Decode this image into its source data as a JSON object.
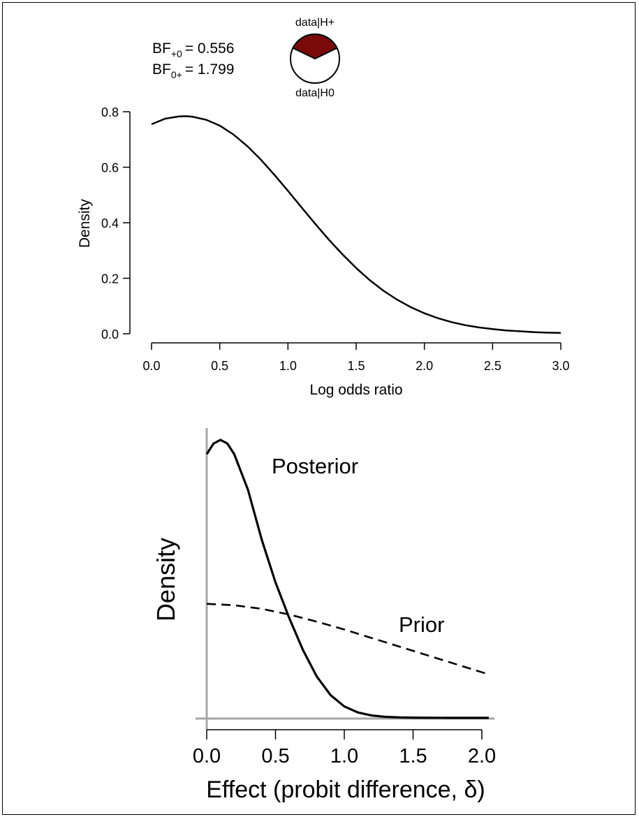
{
  "colors": {
    "pie_h_plus": "#7a0a0a",
    "pie_h0": "#ffffff",
    "axis_gray": "#a6a6a6",
    "line": "#000000"
  },
  "bf": {
    "bf_plus0_prefix": "BF",
    "bf_plus0_sub": "+0",
    "bf_plus0_value": "= 0.556",
    "bf_0plus_prefix": "BF",
    "bf_0plus_sub": "0+",
    "bf_0plus_value": "= 1.799",
    "bf_plus0": 0.556,
    "bf_0plus": 1.799
  },
  "pie": {
    "top_label": "data|H+",
    "bottom_label": "data|H0",
    "h_plus_fraction": 0.357
  },
  "chart_data": [
    {
      "type": "line",
      "xlabel": "Log odds ratio",
      "ylabel": "Density",
      "xlim": [
        0,
        3
      ],
      "ylim": [
        0,
        0.8
      ],
      "xticks": [
        "0.0",
        "0.5",
        "1.0",
        "1.5",
        "2.0",
        "2.5",
        "3.0"
      ],
      "yticks": [
        "0.0",
        "0.2",
        "0.4",
        "0.6",
        "0.8"
      ],
      "series": [
        {
          "x": [
            0.0,
            0.1,
            0.2,
            0.25,
            0.3,
            0.4,
            0.5,
            0.6,
            0.7,
            0.8,
            0.9,
            1.0,
            1.1,
            1.2,
            1.3,
            1.4,
            1.5,
            1.6,
            1.7,
            1.8,
            1.9,
            2.0,
            2.1,
            2.2,
            2.3,
            2.4,
            2.5,
            2.6,
            2.7,
            2.8,
            2.9,
            3.0
          ],
          "y": [
            0.755,
            0.775,
            0.783,
            0.784,
            0.782,
            0.771,
            0.75,
            0.718,
            0.677,
            0.628,
            0.573,
            0.515,
            0.455,
            0.396,
            0.339,
            0.286,
            0.237,
            0.193,
            0.155,
            0.123,
            0.096,
            0.074,
            0.056,
            0.042,
            0.031,
            0.023,
            0.017,
            0.012,
            0.009,
            0.006,
            0.004,
            0.003
          ]
        }
      ]
    },
    {
      "type": "line",
      "xlabel": "Effect (probit difference, δ)",
      "ylabel": "Density",
      "xlim": [
        0,
        2
      ],
      "xticks": [
        "0.0",
        "0.5",
        "1.0",
        "1.5",
        "2.0"
      ],
      "series": [
        {
          "name": "Posterior",
          "style": "solid",
          "x": [
            0.0,
            0.05,
            0.1,
            0.15,
            0.2,
            0.3,
            0.4,
            0.5,
            0.6,
            0.7,
            0.8,
            0.9,
            1.0,
            1.1,
            1.2,
            1.3,
            1.4,
            1.5,
            1.6,
            1.7,
            1.8,
            1.9,
            2.0,
            2.05
          ],
          "y": [
            3.7,
            3.85,
            3.9,
            3.85,
            3.7,
            3.2,
            2.5,
            1.9,
            1.4,
            0.95,
            0.58,
            0.32,
            0.16,
            0.075,
            0.033,
            0.014,
            0.006,
            0.0025,
            0.001,
            0.0004,
            0.0001,
            0.0,
            0.0,
            0.0
          ]
        },
        {
          "name": "Prior",
          "style": "dashed",
          "x": [
            0.0,
            0.2,
            0.4,
            0.6,
            0.8,
            1.0,
            1.2,
            1.4,
            1.6,
            1.8,
            2.0,
            2.05
          ],
          "y": [
            1.6,
            1.58,
            1.53,
            1.45,
            1.35,
            1.24,
            1.12,
            1.0,
            0.88,
            0.76,
            0.64,
            0.61
          ]
        }
      ]
    }
  ]
}
